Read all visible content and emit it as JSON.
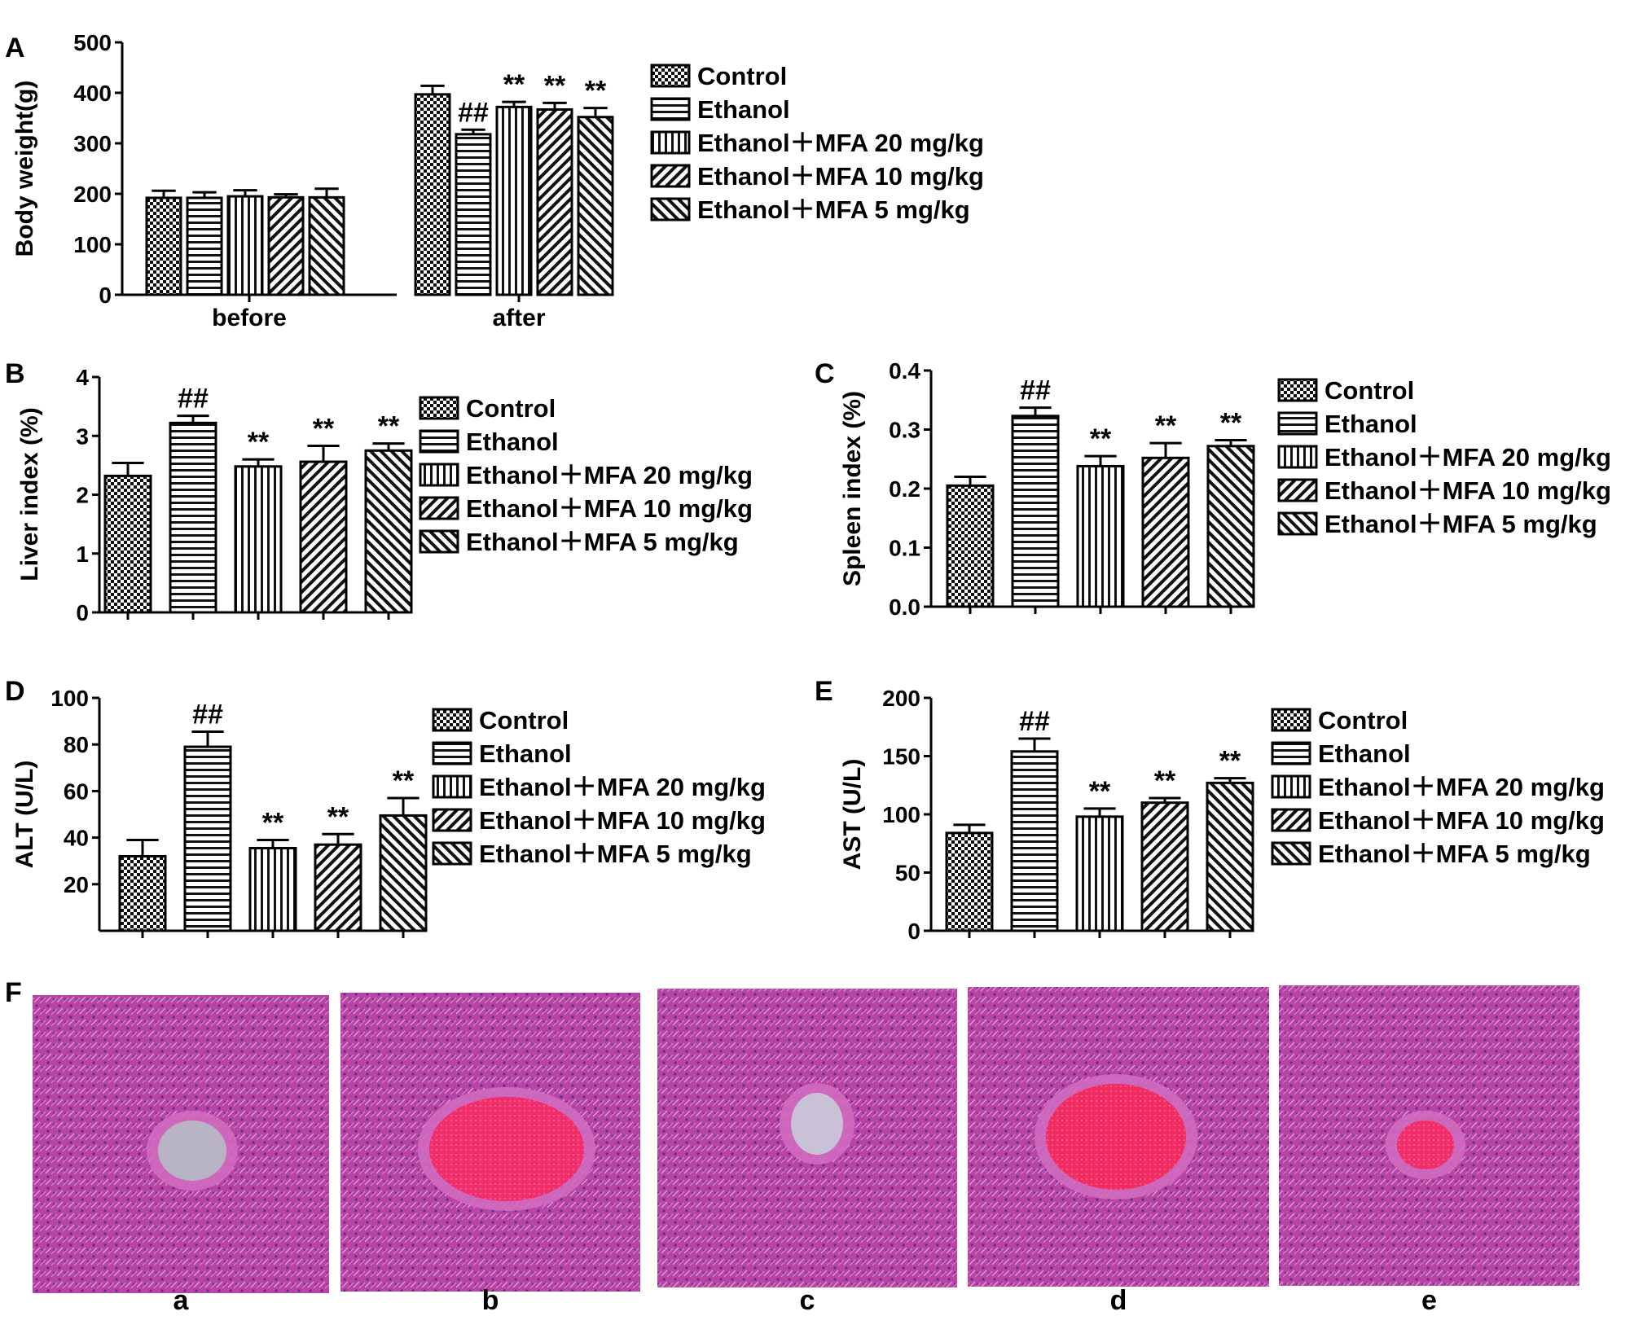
{
  "legend_groups": [
    "Control",
    "Ethanol",
    "Ethanol＋MFA 20 mg/kg",
    "Ethanol＋MFA 10 mg/kg",
    "Ethanol＋MFA 5 mg/kg"
  ],
  "chart_data": [
    {
      "panel": "A",
      "type": "bar",
      "ylabel": "Body weight(g)",
      "ylim": [
        0,
        500
      ],
      "yticks": [
        "0",
        "100",
        "200",
        "300",
        "400",
        "500"
      ],
      "categories": [
        "before",
        "after"
      ],
      "series": [
        {
          "name": "Control",
          "values": [
            192,
            397
          ],
          "errors": [
            14,
            17
          ],
          "marks": [
            "",
            ""
          ]
        },
        {
          "name": "Ethanol",
          "values": [
            192,
            318
          ],
          "errors": [
            11,
            9
          ],
          "marks": [
            "",
            "##"
          ]
        },
        {
          "name": "Ethanol＋MFA 20 mg/kg",
          "values": [
            195,
            372
          ],
          "errors": [
            12,
            10
          ],
          "marks": [
            "",
            "**"
          ]
        },
        {
          "name": "Ethanol＋MFA 10 mg/kg",
          "values": [
            193,
            367
          ],
          "errors": [
            6,
            13
          ],
          "marks": [
            "",
            "**"
          ]
        },
        {
          "name": "Ethanol＋MFA 5 mg/kg",
          "values": [
            193,
            352
          ],
          "errors": [
            17,
            18
          ],
          "marks": [
            "",
            "**"
          ]
        }
      ],
      "legend": "right"
    },
    {
      "panel": "B",
      "type": "bar",
      "ylabel": "Liver index (%)",
      "ylim": [
        0,
        4
      ],
      "yticks": [
        "0",
        "1",
        "2",
        "3",
        "4"
      ],
      "categories": [
        "Control",
        "Ethanol",
        "Ethanol＋MFA 20 mg/kg",
        "Ethanol＋MFA 10 mg/kg",
        "Ethanol＋MFA 5 mg/kg"
      ],
      "values": [
        2.32,
        3.22,
        2.48,
        2.56,
        2.75
      ],
      "errors": [
        0.22,
        0.12,
        0.12,
        0.27,
        0.12
      ],
      "marks": [
        "",
        "##",
        "**",
        "**",
        "**"
      ],
      "legend": "right"
    },
    {
      "panel": "C",
      "type": "bar",
      "ylabel": "Spleen index (%)",
      "ylim": [
        0,
        0.4
      ],
      "yticks": [
        "0.0",
        "0.1",
        "0.2",
        "0.3",
        "0.4"
      ],
      "categories": [
        "Control",
        "Ethanol",
        "Ethanol＋MFA 20 mg/kg",
        "Ethanol＋MFA 10 mg/kg",
        "Ethanol＋MFA 5 mg/kg"
      ],
      "values": [
        0.205,
        0.323,
        0.238,
        0.252,
        0.272
      ],
      "errors": [
        0.015,
        0.014,
        0.017,
        0.025,
        0.01
      ],
      "marks": [
        "",
        "##",
        "**",
        "**",
        "**"
      ],
      "legend": "right"
    },
    {
      "panel": "D",
      "type": "bar",
      "ylabel": "ALT (U/L)",
      "ylim": [
        0,
        100
      ],
      "yticks": [
        "20",
        "40",
        "60",
        "80",
        "100"
      ],
      "categories": [
        "Control",
        "Ethanol",
        "Ethanol＋MFA 20 mg/kg",
        "Ethanol＋MFA 10 mg/kg",
        "Ethanol＋MFA 5 mg/kg"
      ],
      "values": [
        32,
        79,
        35.5,
        37,
        49.5
      ],
      "errors": [
        7,
        6.5,
        3.5,
        4.5,
        7.5
      ],
      "marks": [
        "",
        "##",
        "**",
        "**",
        "**"
      ],
      "legend": "right"
    },
    {
      "panel": "E",
      "type": "bar",
      "ylabel": "AST (U/L)",
      "ylim": [
        0,
        200
      ],
      "yticks": [
        "0",
        "50",
        "100",
        "150",
        "200"
      ],
      "categories": [
        "Control",
        "Ethanol",
        "Ethanol＋MFA 20 mg/kg",
        "Ethanol＋MFA 10 mg/kg",
        "Ethanol＋MFA 5 mg/kg"
      ],
      "values": [
        84,
        154,
        98,
        110,
        127
      ],
      "errors": [
        7,
        11,
        7,
        4,
        4
      ],
      "marks": [
        "",
        "##",
        "**",
        "**",
        "**"
      ],
      "legend": "right"
    }
  ],
  "panel_letters": [
    "A",
    "B",
    "C",
    "D",
    "E",
    "F"
  ],
  "histology": {
    "panel": "F",
    "images": [
      {
        "label": "a",
        "vessel": "empty central vein",
        "vessel_color": "#b9b3c6"
      },
      {
        "label": "b",
        "vessel": "congested vein",
        "vessel_color": "#ef2f6f"
      },
      {
        "label": "c",
        "vessel": "small vein with few erythrocytes",
        "vessel_color": "#c9c2d6"
      },
      {
        "label": "d",
        "vessel": "congested vein",
        "vessel_color": "#ee2c5f"
      },
      {
        "label": "e",
        "vessel": "small congested vein",
        "vessel_color": "#f0306e"
      }
    ],
    "tissue_color": "#c04aa8"
  }
}
